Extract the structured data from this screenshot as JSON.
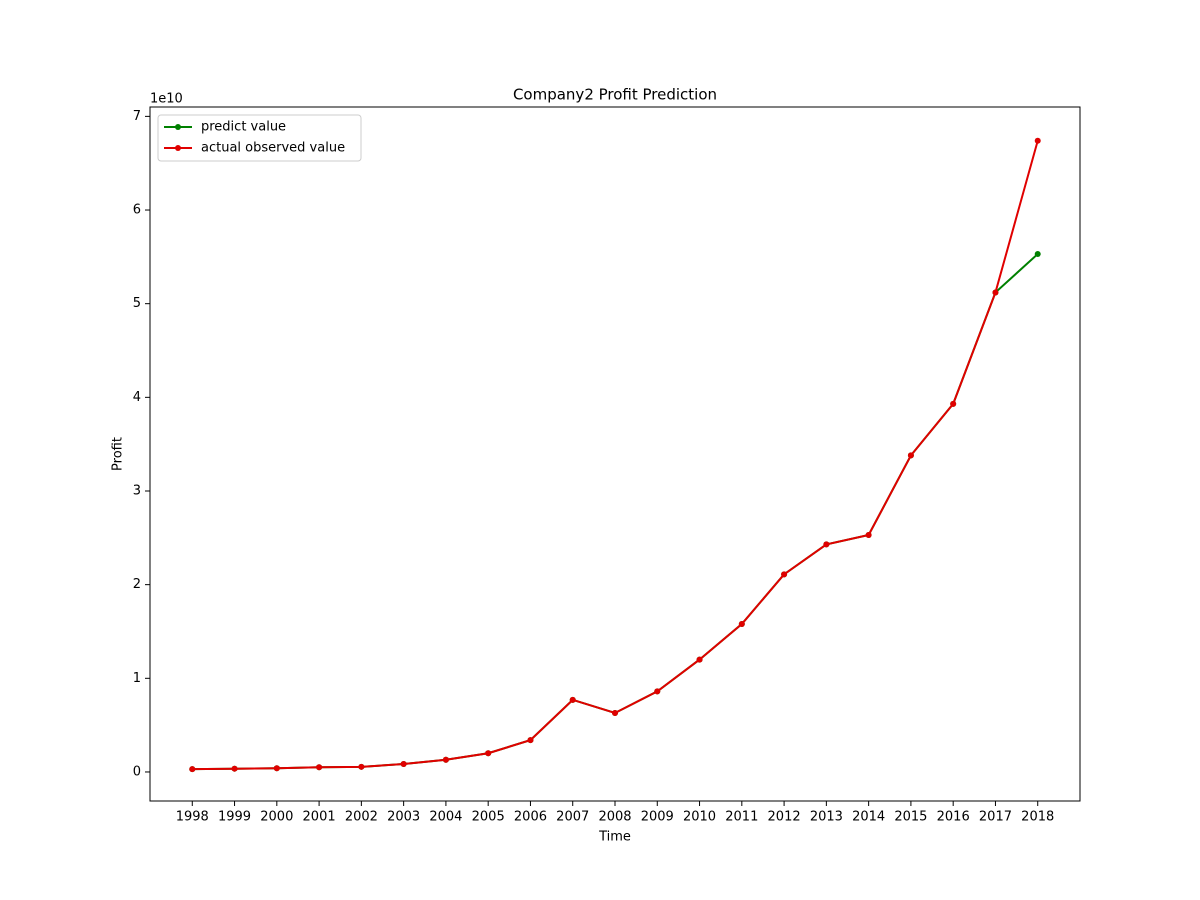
{
  "chart_data": {
    "type": "line",
    "title": "Company2 Profit Prediction",
    "x_label": "Time",
    "y_label": "Profit",
    "y_offset_label": "1e10",
    "x": [
      1998,
      1999,
      2000,
      2001,
      2002,
      2003,
      2004,
      2005,
      2006,
      2007,
      2008,
      2009,
      2010,
      2011,
      2012,
      2013,
      2014,
      2015,
      2016,
      2017,
      2018
    ],
    "series": [
      {
        "name": "predict value",
        "color": "#008000",
        "values": [
          0.03,
          0.035,
          0.04,
          0.05,
          0.055,
          0.085,
          0.13,
          0.2,
          0.34,
          0.77,
          0.63,
          0.86,
          1.2,
          1.58,
          2.11,
          2.43,
          2.53,
          3.38,
          3.93,
          5.12,
          5.53
        ]
      },
      {
        "name": "actual observed value",
        "color": "#e00000",
        "values": [
          0.03,
          0.035,
          0.04,
          0.05,
          0.055,
          0.085,
          0.13,
          0.2,
          0.34,
          0.77,
          0.63,
          0.86,
          1.2,
          1.58,
          2.11,
          2.43,
          2.53,
          3.38,
          3.93,
          5.12,
          6.74
        ]
      }
    ],
    "xlim": [
      1997,
      2019
    ],
    "ylim": [
      -0.31,
      7.1
    ],
    "xticks": [
      1998,
      1999,
      2000,
      2001,
      2002,
      2003,
      2004,
      2005,
      2006,
      2007,
      2008,
      2009,
      2010,
      2011,
      2012,
      2013,
      2014,
      2015,
      2016,
      2017,
      2018
    ],
    "yticks": [
      0,
      1,
      2,
      3,
      4,
      5,
      6,
      7
    ],
    "grid": false,
    "legend": "upper left"
  }
}
